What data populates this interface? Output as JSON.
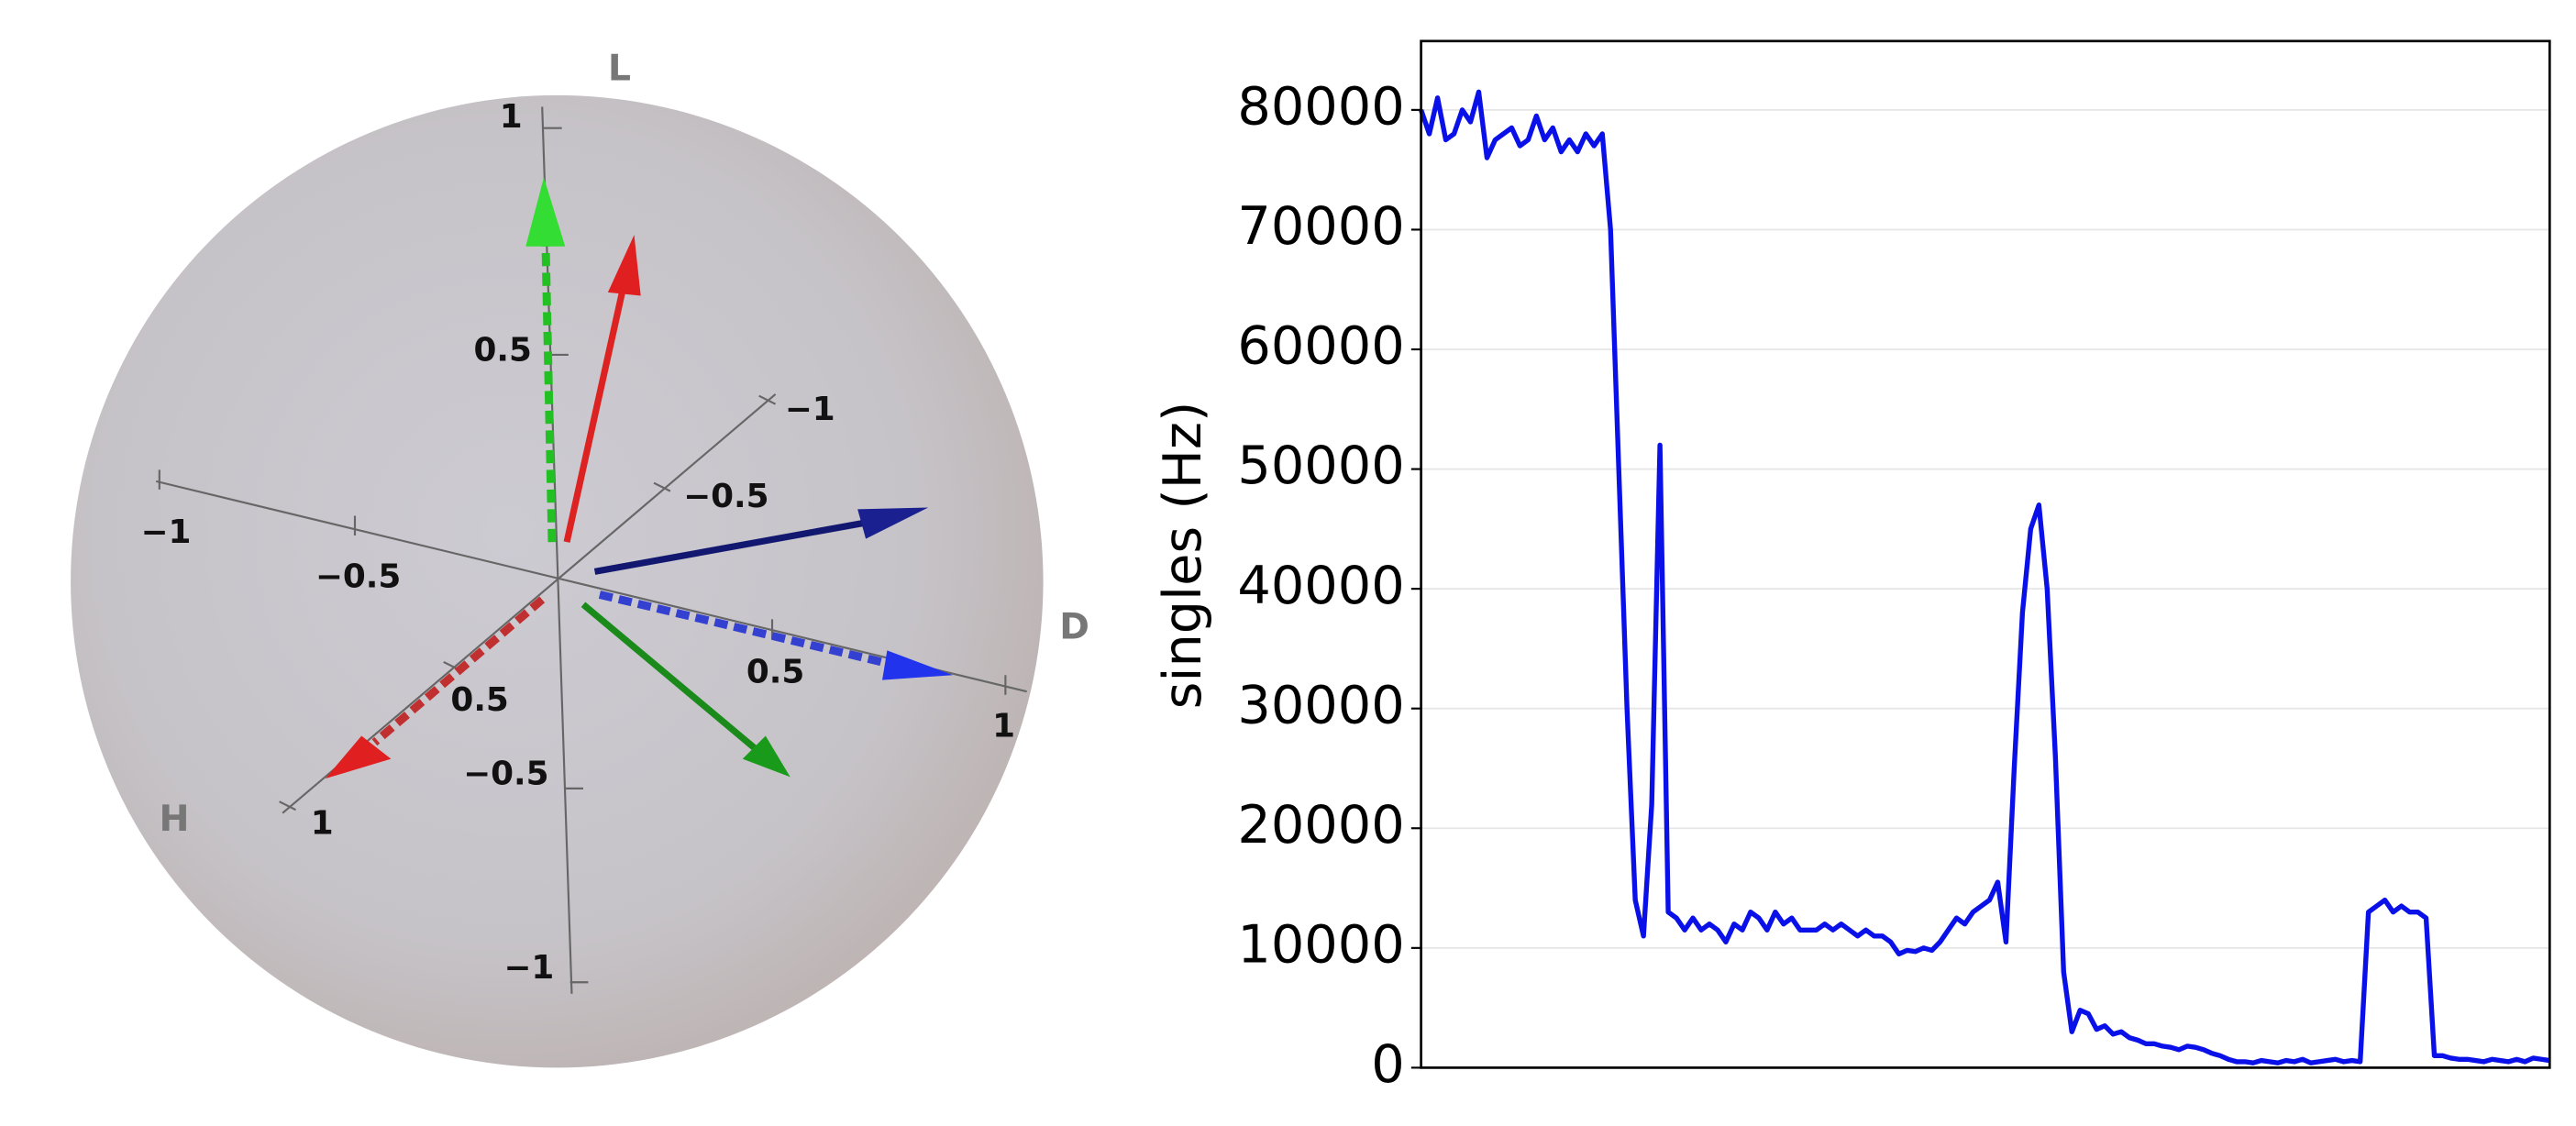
{
  "sphere": {
    "axis_labels": [
      "L",
      "H",
      "D"
    ],
    "vertical_ticks": [
      "1",
      "0.5",
      "−0.5",
      "−1"
    ],
    "horizontal_ticks": [
      "−1",
      "−0.5",
      "0.5",
      "1"
    ],
    "depth_ticks": [
      "−1",
      "−0.5",
      "0.5",
      "1"
    ]
  },
  "chart_data": {
    "type": "line",
    "ylabel": "singles (Hz)",
    "color": "#0a10e8",
    "values": [
      80000,
      78000,
      81000,
      77500,
      78000,
      80000,
      79000,
      81500,
      76000,
      77500,
      78000,
      78500,
      77000,
      77500,
      79500,
      77500,
      78500,
      76500,
      77500,
      76500,
      78000,
      77000,
      78000,
      70000,
      50000,
      30000,
      14000,
      11000,
      22000,
      52000,
      13000,
      12500,
      11500,
      12500,
      11500,
      12000,
      11500,
      10500,
      12000,
      11500,
      13000,
      12500,
      11500,
      13000,
      12000,
      12500,
      11500,
      11500,
      11500,
      12000,
      11500,
      12000,
      11500,
      11000,
      11500,
      11000,
      11000,
      10500,
      9500,
      9800,
      9700,
      10000,
      9800,
      10500,
      11500,
      12500,
      12000,
      13000,
      13500,
      14000,
      15500,
      10500,
      25000,
      38000,
      45000,
      47000,
      40000,
      26000,
      8000,
      3000,
      4800,
      4500,
      3200,
      3500,
      2800,
      3000,
      2500,
      2300,
      2000,
      2000,
      1800,
      1700,
      1500,
      1800,
      1700,
      1500,
      1200,
      1000,
      700,
      500,
      500,
      400,
      600,
      500,
      400,
      600,
      500,
      700,
      400,
      500,
      600,
      700,
      500,
      600,
      500,
      13000,
      13500,
      14000,
      13000,
      13500,
      13000,
      13000,
      12500,
      1000,
      1000,
      800,
      700,
      700,
      600,
      500,
      700,
      600,
      500,
      700,
      500,
      800,
      700,
      600
    ],
    "ylim": [
      0,
      85750
    ],
    "yticks": [
      0,
      10000,
      20000,
      30000,
      40000,
      50000,
      60000,
      70000,
      80000
    ],
    "grid": true
  }
}
